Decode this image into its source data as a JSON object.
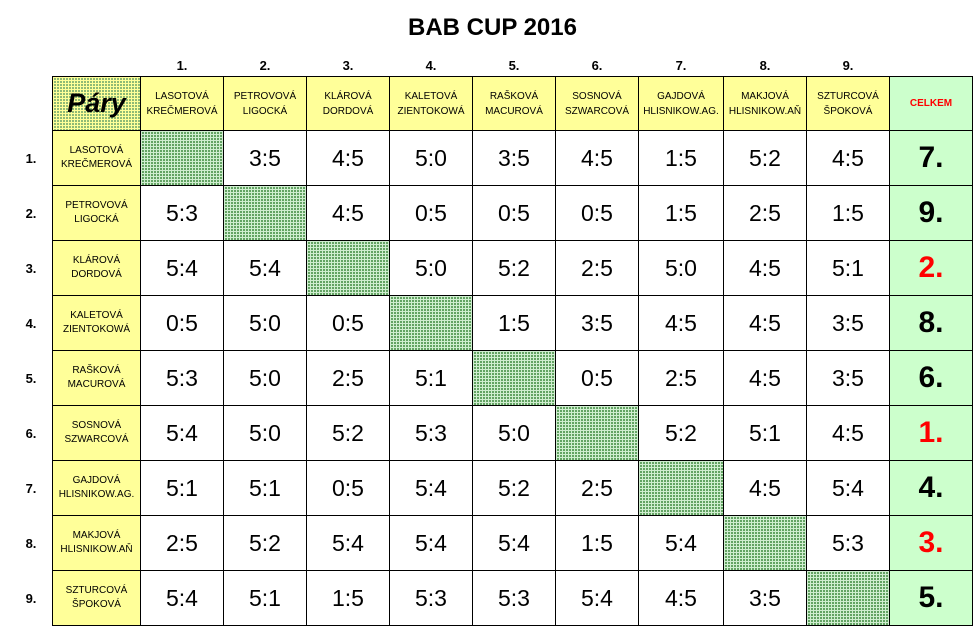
{
  "title": "BAB CUP 2016",
  "corner_label": "Páry",
  "celkem_label": "CELKEM",
  "column_numbers": [
    "1.",
    "2.",
    "3.",
    "4.",
    "5.",
    "6.",
    "7.",
    "8.",
    "9."
  ],
  "teams": [
    {
      "num": "1.",
      "line1": "LASOTOVÁ",
      "line2": "KREČMEROVÁ"
    },
    {
      "num": "2.",
      "line1": "PETROVOVÁ",
      "line2": "LIGOCKÁ"
    },
    {
      "num": "3.",
      "line1": "KLÁROVÁ",
      "line2": "DORDOVÁ"
    },
    {
      "num": "4.",
      "line1": "KALETOVÁ",
      "line2": "ZIENTOKOWÁ"
    },
    {
      "num": "5.",
      "line1": "RAŠKOVÁ",
      "line2": "MACUROVÁ"
    },
    {
      "num": "6.",
      "line1": "SOSNOVÁ",
      "line2": "SZWARCOVÁ"
    },
    {
      "num": "7.",
      "line1": "GAJDOVÁ",
      "line2": "HLISNIKOW.AG."
    },
    {
      "num": "8.",
      "line1": "MAKJOVÁ",
      "line2": "HLISNIKOW.AŇ"
    },
    {
      "num": "9.",
      "line1": "SZTURCOVÁ",
      "line2": "ŠPOKOVÁ"
    }
  ],
  "scores": [
    [
      "",
      "3:5",
      "4:5",
      "5:0",
      "3:5",
      "4:5",
      "1:5",
      "5:2",
      "4:5"
    ],
    [
      "5:3",
      "",
      "4:5",
      "0:5",
      "0:5",
      "0:5",
      "1:5",
      "2:5",
      "1:5"
    ],
    [
      "5:4",
      "5:4",
      "",
      "5:0",
      "5:2",
      "2:5",
      "5:0",
      "4:5",
      "5:1"
    ],
    [
      "0:5",
      "5:0",
      "0:5",
      "",
      "1:5",
      "3:5",
      "4:5",
      "4:5",
      "3:5"
    ],
    [
      "5:3",
      "5:0",
      "2:5",
      "5:1",
      "",
      "0:5",
      "2:5",
      "4:5",
      "3:5"
    ],
    [
      "5:4",
      "5:0",
      "5:2",
      "5:3",
      "5:0",
      "",
      "5:2",
      "5:1",
      "4:5"
    ],
    [
      "5:1",
      "5:1",
      "0:5",
      "5:4",
      "5:2",
      "2:5",
      "",
      "4:5",
      "5:4"
    ],
    [
      "2:5",
      "5:2",
      "5:4",
      "5:4",
      "5:4",
      "1:5",
      "5:4",
      "",
      "5:3"
    ],
    [
      "5:4",
      "5:1",
      "1:5",
      "5:3",
      "5:3",
      "5:4",
      "4:5",
      "3:5",
      ""
    ]
  ],
  "ranks": [
    "7.",
    "9.",
    "2.",
    "8.",
    "6.",
    "1.",
    "4.",
    "3.",
    "5."
  ],
  "highlight_ranks": [
    "1.",
    "2.",
    "3."
  ],
  "colors": {
    "header_yellow": "#ffff99",
    "total_green": "#ccffcc",
    "diagonal_green": "#cfeecf",
    "medal_red": "#ff0000"
  }
}
